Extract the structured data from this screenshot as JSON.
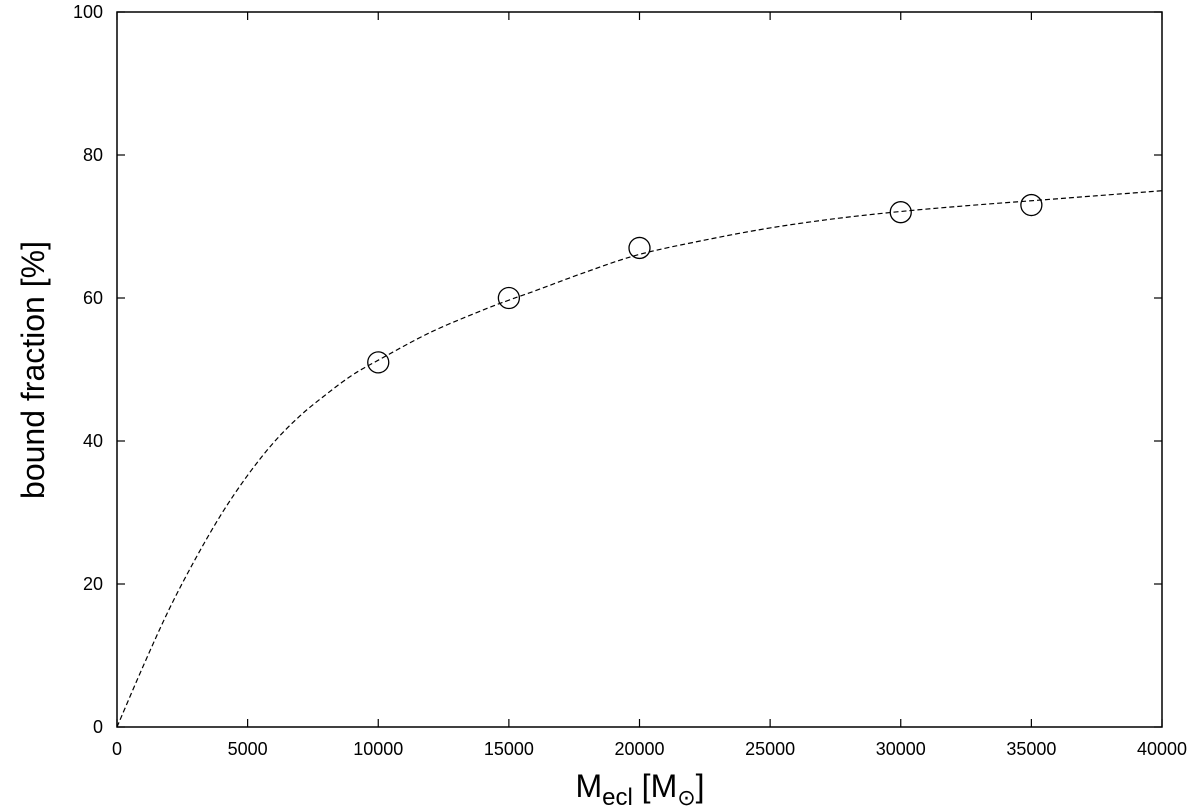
{
  "chart_data": {
    "type": "scatter",
    "xlabel": "M",
    "xlabel_sub": "ecl",
    "xlabel_rest": " [M",
    "xlabel_sun": "⊙",
    "xlabel_end": "]",
    "ylabel": "bound fraction [%]",
    "xlim": [
      0,
      40000
    ],
    "ylim": [
      0,
      100
    ],
    "x_ticks": [
      0,
      5000,
      10000,
      15000,
      20000,
      25000,
      30000,
      35000,
      40000
    ],
    "y_ticks": [
      0,
      20,
      40,
      60,
      80,
      100
    ],
    "grid": false,
    "series": [
      {
        "type": "scatter",
        "marker": "open-circle",
        "points": [
          {
            "x": 10000,
            "y": 51
          },
          {
            "x": 15000,
            "y": 60
          },
          {
            "x": 20000,
            "y": 67
          },
          {
            "x": 30000,
            "y": 72
          },
          {
            "x": 35000,
            "y": 73
          }
        ]
      },
      {
        "type": "line",
        "style": "dashed",
        "points": [
          {
            "x": 0,
            "y": 0
          },
          {
            "x": 1000,
            "y": 8.5
          },
          {
            "x": 2000,
            "y": 16.5
          },
          {
            "x": 3000,
            "y": 23.5
          },
          {
            "x": 4000,
            "y": 29.8
          },
          {
            "x": 5000,
            "y": 35.2
          },
          {
            "x": 6000,
            "y": 39.8
          },
          {
            "x": 7000,
            "y": 43.5
          },
          {
            "x": 8000,
            "y": 46.5
          },
          {
            "x": 9000,
            "y": 49.2
          },
          {
            "x": 10000,
            "y": 51.3
          },
          {
            "x": 12000,
            "y": 55.2
          },
          {
            "x": 14000,
            "y": 58.3
          },
          {
            "x": 15000,
            "y": 59.7
          },
          {
            "x": 16000,
            "y": 61.0
          },
          {
            "x": 18000,
            "y": 63.7
          },
          {
            "x": 20000,
            "y": 66.1
          },
          {
            "x": 22500,
            "y": 68.1
          },
          {
            "x": 25000,
            "y": 69.8
          },
          {
            "x": 27500,
            "y": 71.1
          },
          {
            "x": 30000,
            "y": 72.1
          },
          {
            "x": 32500,
            "y": 72.9
          },
          {
            "x": 35000,
            "y": 73.6
          },
          {
            "x": 37500,
            "y": 74.3
          },
          {
            "x": 40000,
            "y": 75.0
          }
        ]
      }
    ]
  },
  "colors": {
    "axis": "#000000",
    "marker": "#000000",
    "curve": "#000000",
    "background": "#ffffff"
  }
}
